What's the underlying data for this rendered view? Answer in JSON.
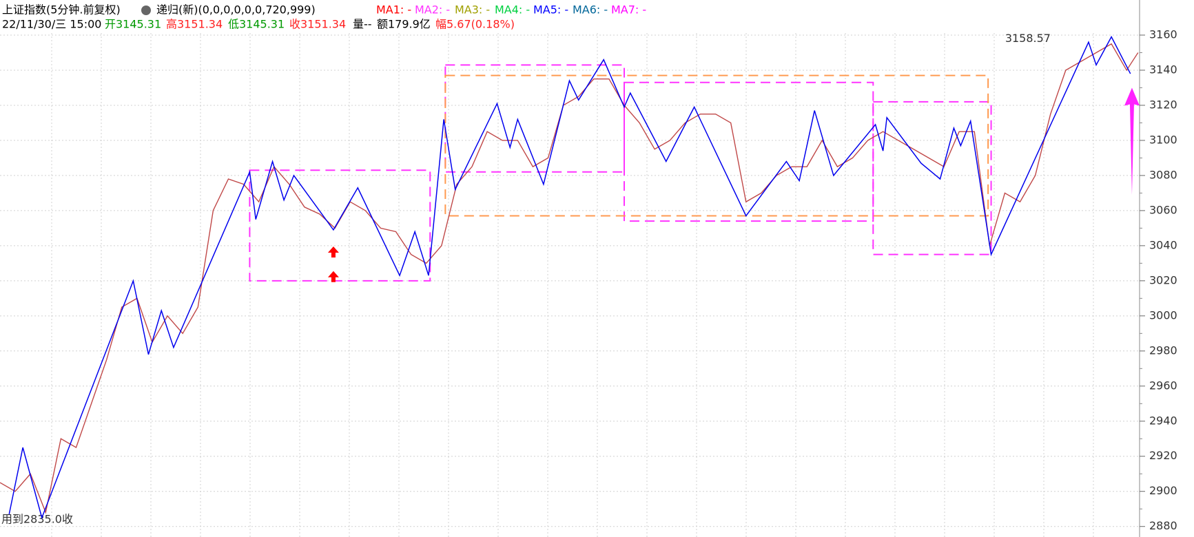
{
  "chart_data": {
    "type": "line",
    "title": "上证指数(5分钟.前复权)",
    "indicator": "递归(新)(0,0,0,0,0,0,720,999)",
    "legend": [
      {
        "label": "MA1: -",
        "color": "#ff0000"
      },
      {
        "label": "MA2: -",
        "color": "#ff33ff"
      },
      {
        "label": "MA3: -",
        "color": "#a0a000"
      },
      {
        "label": "MA4: -",
        "color": "#00d040"
      },
      {
        "label": "MA5: -",
        "color": "#0000ff"
      },
      {
        "label": "MA6: -",
        "color": "#006699"
      },
      {
        "label": "MA7: -",
        "color": "#ff00ff"
      }
    ],
    "quote": [
      {
        "text": "22/11/30/三 15:00",
        "color": "#000000"
      },
      {
        "text": "开3145.31",
        "color": "#009900"
      },
      {
        "text": "高3151.34",
        "color": "#ff2020"
      },
      {
        "text": "低3145.31",
        "color": "#009900"
      },
      {
        "text": "收3151.34",
        "color": "#ff2020"
      },
      {
        "text": "量--",
        "color": "#000000"
      },
      {
        "text": "额179.9亿",
        "color": "#000000"
      },
      {
        "text": "幅5.67(0.18%)",
        "color": "#ff2020"
      }
    ],
    "footer_text": "用到2835.0收",
    "high_label": {
      "x": 1400,
      "value": 3158.57
    },
    "xlim": [
      0,
      1497
    ],
    "ylim": [
      2874,
      3180
    ],
    "yticks": [
      2880,
      2900,
      2920,
      2940,
      2960,
      2980,
      3000,
      3020,
      3040,
      3060,
      3080,
      3100,
      3120,
      3140,
      3160
    ],
    "grid": true,
    "price": {
      "color": "#c04848",
      "x": [
        0,
        20,
        40,
        60,
        80,
        100,
        120,
        140,
        160,
        180,
        200,
        220,
        240,
        260,
        280,
        300,
        320,
        340,
        360,
        380,
        400,
        420,
        440,
        460,
        480,
        500,
        520,
        540,
        560,
        580,
        600,
        620,
        640,
        660,
        680,
        700,
        720,
        740,
        760,
        780,
        800,
        820,
        840,
        860,
        880,
        900,
        920,
        940,
        960,
        980,
        1000,
        1020,
        1040,
        1060,
        1080,
        1100,
        1120,
        1140,
        1160,
        1180,
        1200,
        1220,
        1240,
        1260,
        1280,
        1300,
        1320,
        1340,
        1360,
        1380,
        1400,
        1420,
        1440,
        1460,
        1480,
        1495
      ],
      "values": [
        2905,
        2900,
        2910,
        2888,
        2930,
        2925,
        2950,
        2975,
        3005,
        3010,
        2985,
        3000,
        2990,
        3005,
        3060,
        3078,
        3075,
        3065,
        3085,
        3075,
        3062,
        3058,
        3050,
        3065,
        3060,
        3050,
        3048,
        3035,
        3030,
        3040,
        3075,
        3085,
        3105,
        3100,
        3100,
        3085,
        3090,
        3120,
        3125,
        3135,
        3135,
        3120,
        3110,
        3095,
        3100,
        3110,
        3115,
        3115,
        3110,
        3065,
        3070,
        3080,
        3085,
        3085,
        3100,
        3085,
        3090,
        3100,
        3105,
        3100,
        3095,
        3090,
        3085,
        3105,
        3105,
        3040,
        3070,
        3065,
        3080,
        3115,
        3140,
        3145,
        3150,
        3155,
        3140,
        3150
      ]
    },
    "zigzag": {
      "color": "#0000ee",
      "x": [
        12,
        30,
        55,
        175,
        195,
        212,
        228,
        328,
        336,
        358,
        373,
        386,
        438,
        470,
        525,
        545,
        563,
        583,
        598,
        653,
        670,
        680,
        714,
        748,
        760,
        793,
        820,
        828,
        875,
        912,
        980,
        1033,
        1050,
        1070,
        1095,
        1150,
        1160,
        1165,
        1210,
        1235,
        1253,
        1262,
        1275,
        1302,
        1430,
        1440,
        1460,
        1485
      ],
      "values": [
        2887,
        2925,
        2885,
        3020,
        2978,
        3003,
        2982,
        3082,
        3055,
        3088,
        3066,
        3080,
        3049,
        3073,
        3023,
        3048,
        3023,
        3112,
        3072,
        3121,
        3096,
        3112,
        3075,
        3134,
        3123,
        3146,
        3119,
        3127,
        3088,
        3119,
        3057,
        3088,
        3077,
        3117,
        3080,
        3109,
        3094,
        3113,
        3087,
        3078,
        3107,
        3097,
        3111,
        3035,
        3156,
        3143,
        3159,
        3138
      ]
    },
    "boxes": [
      {
        "x": [
          328,
          565
        ],
        "y": [
          3020,
          3083
        ],
        "color": "#ff33ff"
      },
      {
        "x": [
          585,
          820
        ],
        "y": [
          3082,
          3143
        ],
        "color": "#ff33ff"
      },
      {
        "x": [
          820,
          1147
        ],
        "y": [
          3054,
          3133
        ],
        "color": "#ff33ff"
      },
      {
        "x": [
          1147,
          1302
        ],
        "y": [
          3035,
          3122
        ],
        "color": "#ff33ff"
      },
      {
        "x": [
          585,
          1298
        ],
        "y": [
          3057,
          3137
        ],
        "color": "#ff9a50"
      }
    ],
    "arrows": [
      {
        "x": 438,
        "y": 3036,
        "color": "#ff0000"
      },
      {
        "x": 438,
        "y": 3022,
        "color": "#ff0000"
      }
    ],
    "big_arrow": {
      "x": 1487,
      "y": [
        3069,
        3130
      ],
      "color": "#ff22ff"
    }
  }
}
